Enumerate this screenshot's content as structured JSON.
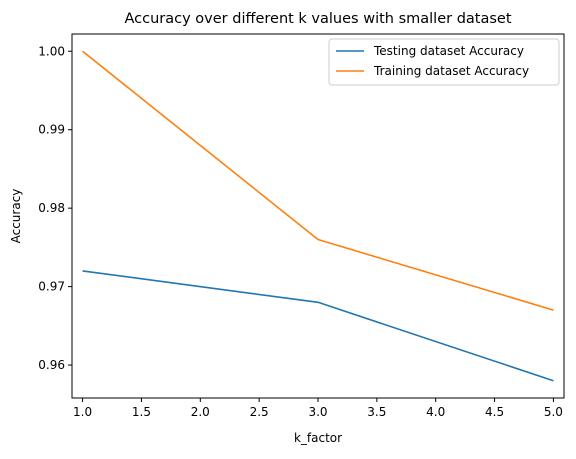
{
  "chart_data": {
    "type": "line",
    "title": "Accuracy over different k values with smaller dataset",
    "xlabel": "k_factor",
    "ylabel": "Accuracy",
    "xlim": [
      0.91,
      5.09
    ],
    "ylim": [
      0.9558,
      1.0022
    ],
    "x_ticks": [
      1.0,
      1.5,
      2.0,
      2.5,
      3.0,
      3.5,
      4.0,
      4.5,
      5.0
    ],
    "x_tick_labels": [
      "1.0",
      "1.5",
      "2.0",
      "2.5",
      "3.0",
      "3.5",
      "4.0",
      "4.5",
      "5.0"
    ],
    "y_ticks": [
      0.96,
      0.97,
      0.98,
      0.99,
      1.0
    ],
    "y_tick_labels": [
      "0.96",
      "0.97",
      "0.98",
      "0.99",
      "1.00"
    ],
    "grid": false,
    "legend_position": "top-right",
    "series": [
      {
        "name": "Testing dataset Accuracy",
        "color": "#1f77b4",
        "x": [
          1,
          3,
          5
        ],
        "y": [
          0.972,
          0.968,
          0.958
        ]
      },
      {
        "name": "Training dataset Accuracy",
        "color": "#ff7f0e",
        "x": [
          1,
          3,
          5
        ],
        "y": [
          1.0,
          0.976,
          0.967
        ]
      }
    ]
  }
}
